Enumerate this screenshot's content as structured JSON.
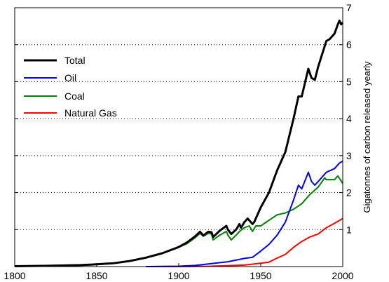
{
  "chart_data": {
    "type": "line",
    "title": "",
    "xlabel": "",
    "ylabel": "Gigatonnes of carbon released yearly",
    "xlim": [
      1800,
      2000
    ],
    "ylim": [
      0,
      7
    ],
    "x_ticks": [
      "1800",
      "1850",
      "1900",
      "1950",
      "2000"
    ],
    "y_ticks": [
      "1",
      "2",
      "3",
      "4",
      "5",
      "6",
      "7"
    ],
    "y_axis_side": "right",
    "grid": "horizontal dotted",
    "legend_position": "upper-left",
    "series": [
      {
        "name": "Total",
        "color": "#000000",
        "points": [
          [
            1800,
            0.01
          ],
          [
            1820,
            0.02
          ],
          [
            1840,
            0.04
          ],
          [
            1850,
            0.06
          ],
          [
            1860,
            0.09
          ],
          [
            1870,
            0.15
          ],
          [
            1880,
            0.24
          ],
          [
            1890,
            0.36
          ],
          [
            1900,
            0.53
          ],
          [
            1905,
            0.65
          ],
          [
            1910,
            0.82
          ],
          [
            1913,
            0.94
          ],
          [
            1915,
            0.84
          ],
          [
            1918,
            0.94
          ],
          [
            1920,
            0.93
          ],
          [
            1921,
            0.8
          ],
          [
            1925,
            0.97
          ],
          [
            1929,
            1.1
          ],
          [
            1930,
            1.0
          ],
          [
            1932,
            0.88
          ],
          [
            1935,
            1.0
          ],
          [
            1937,
            1.15
          ],
          [
            1938,
            1.05
          ],
          [
            1940,
            1.2
          ],
          [
            1942,
            1.3
          ],
          [
            1945,
            1.15
          ],
          [
            1946,
            1.2
          ],
          [
            1950,
            1.6
          ],
          [
            1955,
            2.0
          ],
          [
            1960,
            2.6
          ],
          [
            1965,
            3.1
          ],
          [
            1970,
            4.0
          ],
          [
            1973,
            4.6
          ],
          [
            1975,
            4.6
          ],
          [
            1979,
            5.35
          ],
          [
            1981,
            5.1
          ],
          [
            1983,
            5.05
          ],
          [
            1985,
            5.4
          ],
          [
            1990,
            6.1
          ],
          [
            1992,
            6.15
          ],
          [
            1995,
            6.3
          ],
          [
            1997,
            6.55
          ],
          [
            1998,
            6.65
          ],
          [
            1999,
            6.55
          ],
          [
            2000,
            6.6
          ]
        ]
      },
      {
        "name": "Oil",
        "color": "#0000ff",
        "points": [
          [
            1880,
            0.0
          ],
          [
            1900,
            0.01
          ],
          [
            1910,
            0.03
          ],
          [
            1920,
            0.08
          ],
          [
            1930,
            0.13
          ],
          [
            1940,
            0.22
          ],
          [
            1945,
            0.25
          ],
          [
            1950,
            0.42
          ],
          [
            1955,
            0.6
          ],
          [
            1960,
            0.85
          ],
          [
            1965,
            1.2
          ],
          [
            1970,
            1.8
          ],
          [
            1973,
            2.2
          ],
          [
            1975,
            2.1
          ],
          [
            1979,
            2.55
          ],
          [
            1981,
            2.3
          ],
          [
            1983,
            2.2
          ],
          [
            1985,
            2.3
          ],
          [
            1990,
            2.55
          ],
          [
            1995,
            2.65
          ],
          [
            1998,
            2.8
          ],
          [
            2000,
            2.85
          ]
        ]
      },
      {
        "name": "Coal",
        "color": "#008000",
        "points": [
          [
            1800,
            0.01
          ],
          [
            1820,
            0.02
          ],
          [
            1840,
            0.04
          ],
          [
            1850,
            0.06
          ],
          [
            1860,
            0.09
          ],
          [
            1870,
            0.15
          ],
          [
            1880,
            0.24
          ],
          [
            1890,
            0.36
          ],
          [
            1900,
            0.52
          ],
          [
            1905,
            0.62
          ],
          [
            1910,
            0.78
          ],
          [
            1913,
            0.9
          ],
          [
            1915,
            0.82
          ],
          [
            1918,
            0.9
          ],
          [
            1920,
            0.88
          ],
          [
            1921,
            0.72
          ],
          [
            1925,
            0.85
          ],
          [
            1929,
            0.95
          ],
          [
            1930,
            0.85
          ],
          [
            1932,
            0.72
          ],
          [
            1935,
            0.85
          ],
          [
            1937,
            0.95
          ],
          [
            1940,
            1.05
          ],
          [
            1943,
            1.1
          ],
          [
            1945,
            0.95
          ],
          [
            1947,
            1.1
          ],
          [
            1950,
            1.1
          ],
          [
            1955,
            1.25
          ],
          [
            1960,
            1.4
          ],
          [
            1965,
            1.45
          ],
          [
            1970,
            1.55
          ],
          [
            1975,
            1.7
          ],
          [
            1980,
            1.95
          ],
          [
            1985,
            2.15
          ],
          [
            1989,
            2.4
          ],
          [
            1990,
            2.35
          ],
          [
            1995,
            2.35
          ],
          [
            1997,
            2.45
          ],
          [
            2000,
            2.25
          ]
        ]
      },
      {
        "name": "Natural Gas",
        "color": "#ff0000",
        "points": [
          [
            1880,
            0.0
          ],
          [
            1900,
            0.0
          ],
          [
            1920,
            0.01
          ],
          [
            1940,
            0.04
          ],
          [
            1950,
            0.09
          ],
          [
            1955,
            0.12
          ],
          [
            1960,
            0.23
          ],
          [
            1965,
            0.33
          ],
          [
            1970,
            0.52
          ],
          [
            1975,
            0.68
          ],
          [
            1980,
            0.8
          ],
          [
            1985,
            0.88
          ],
          [
            1990,
            1.05
          ],
          [
            1995,
            1.17
          ],
          [
            2000,
            1.3
          ]
        ]
      }
    ]
  }
}
